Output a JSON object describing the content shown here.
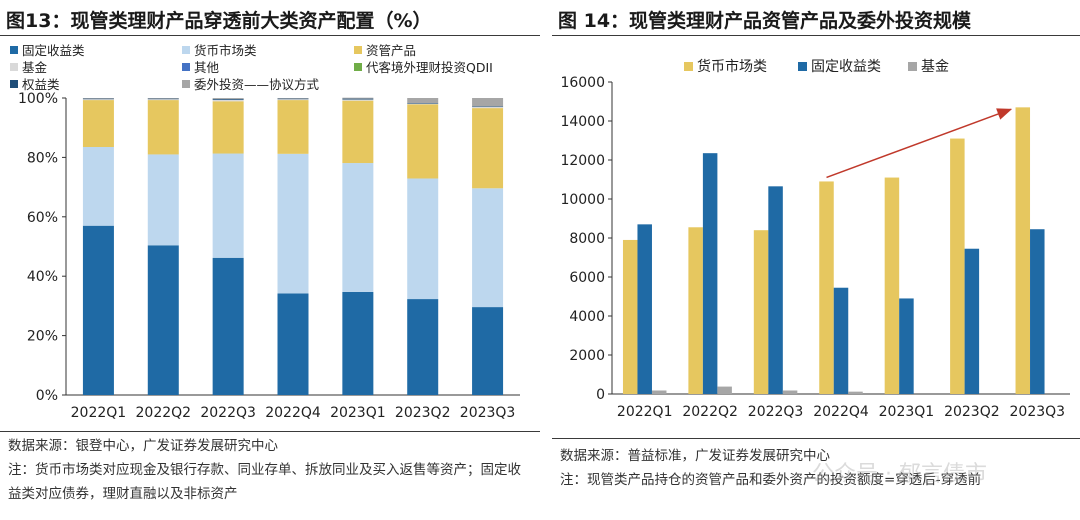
{
  "charts": [
    {
      "title": "图13：现管类理财产品穿透前大类资产配置（%）",
      "source": "数据来源：银登中心，广发证券发展研究中心",
      "note": "注：货币市场类对应现金及银行存款、同业存单、拆放同业及买入返售等资产；固定收益类对应债券，理财直融以及非标资产"
    },
    {
      "title": "图 14：现管类理财产品资管产品及委外投资规模",
      "source": "数据来源：普益标准，广发证券发展研究中心",
      "note": "注：现管类产品持仓的资管产品和委外资产的投资额度=穿透后-穿透前",
      "watermark": "公众号 · 郁言债市"
    }
  ],
  "chart_data": [
    {
      "type": "bar",
      "stacked": true,
      "categories": [
        "2022Q1",
        "2022Q2",
        "2022Q3",
        "2022Q4",
        "2023Q1",
        "2023Q2",
        "2023Q3"
      ],
      "ylim": [
        0,
        100
      ],
      "yticks": [
        "0%",
        "20%",
        "40%",
        "60%",
        "80%",
        "100%"
      ],
      "grid": false,
      "legend_position": "top",
      "legend": [
        "固定收益类",
        "货币市场类",
        "资管产品",
        "基金",
        "其他",
        "代客境外理财投资QDII",
        "权益类",
        "委外投资——协议方式"
      ],
      "series": [
        {
          "name": "固定收益类",
          "color": "#1f6aa5",
          "values": [
            57.0,
            50.4,
            46.2,
            34.2,
            34.7,
            32.3,
            29.6
          ]
        },
        {
          "name": "货币市场类",
          "color": "#bdd7ee",
          "values": [
            26.5,
            30.6,
            35.1,
            47.0,
            43.4,
            40.6,
            40.0
          ]
        },
        {
          "name": "资管产品",
          "color": "#e6c75f",
          "values": [
            15.8,
            18.3,
            17.6,
            18.1,
            21.0,
            25.0,
            27.0
          ]
        },
        {
          "name": "基金",
          "color": "#d9d9d9",
          "values": [
            0.3,
            0.3,
            0.5,
            0.3,
            0.4,
            0.2,
            0.4
          ]
        },
        {
          "name": "其他",
          "color": "#4472c4",
          "values": [
            0.0,
            0.0,
            0.0,
            0.0,
            0.0,
            0.0,
            0.0
          ]
        },
        {
          "name": "代客境外理财投资QDII",
          "color": "#70ad47",
          "values": [
            0.0,
            0.0,
            0.0,
            0.0,
            0.0,
            0.0,
            0.0
          ]
        },
        {
          "name": "权益类",
          "color": "#1f4e79",
          "values": [
            0.2,
            0.2,
            0.3,
            0.2,
            0.3,
            0.2,
            0.2
          ]
        },
        {
          "name": "委外投资——协议方式",
          "color": "#a6a6a6",
          "values": [
            0.2,
            0.2,
            0.3,
            0.2,
            0.3,
            1.7,
            2.8
          ]
        }
      ]
    },
    {
      "type": "bar",
      "categories": [
        "2022Q1",
        "2022Q2",
        "2022Q3",
        "2022Q4",
        "2023Q1",
        "2023Q2",
        "2023Q3"
      ],
      "ylim": [
        0,
        16000
      ],
      "yticks": [
        "0",
        "2000",
        "4000",
        "6000",
        "8000",
        "10000",
        "12000",
        "14000",
        "16000"
      ],
      "grid": false,
      "legend_position": "top",
      "series": [
        {
          "name": "货币市场类",
          "color": "#e6c75f",
          "values": [
            7900,
            8550,
            8400,
            10900,
            11100,
            13100,
            14700
          ]
        },
        {
          "name": "固定收益类",
          "color": "#1f6aa5",
          "values": [
            8700,
            12350,
            10650,
            5450,
            4900,
            7450,
            8450
          ]
        },
        {
          "name": "基金",
          "color": "#a6a6a6",
          "values": [
            180,
            380,
            180,
            120,
            0,
            0,
            0
          ]
        }
      ],
      "annotation": {
        "type": "arrow",
        "color": "#c0392b",
        "from_category": "2022Q4",
        "to_category": "2023Q3"
      }
    }
  ]
}
